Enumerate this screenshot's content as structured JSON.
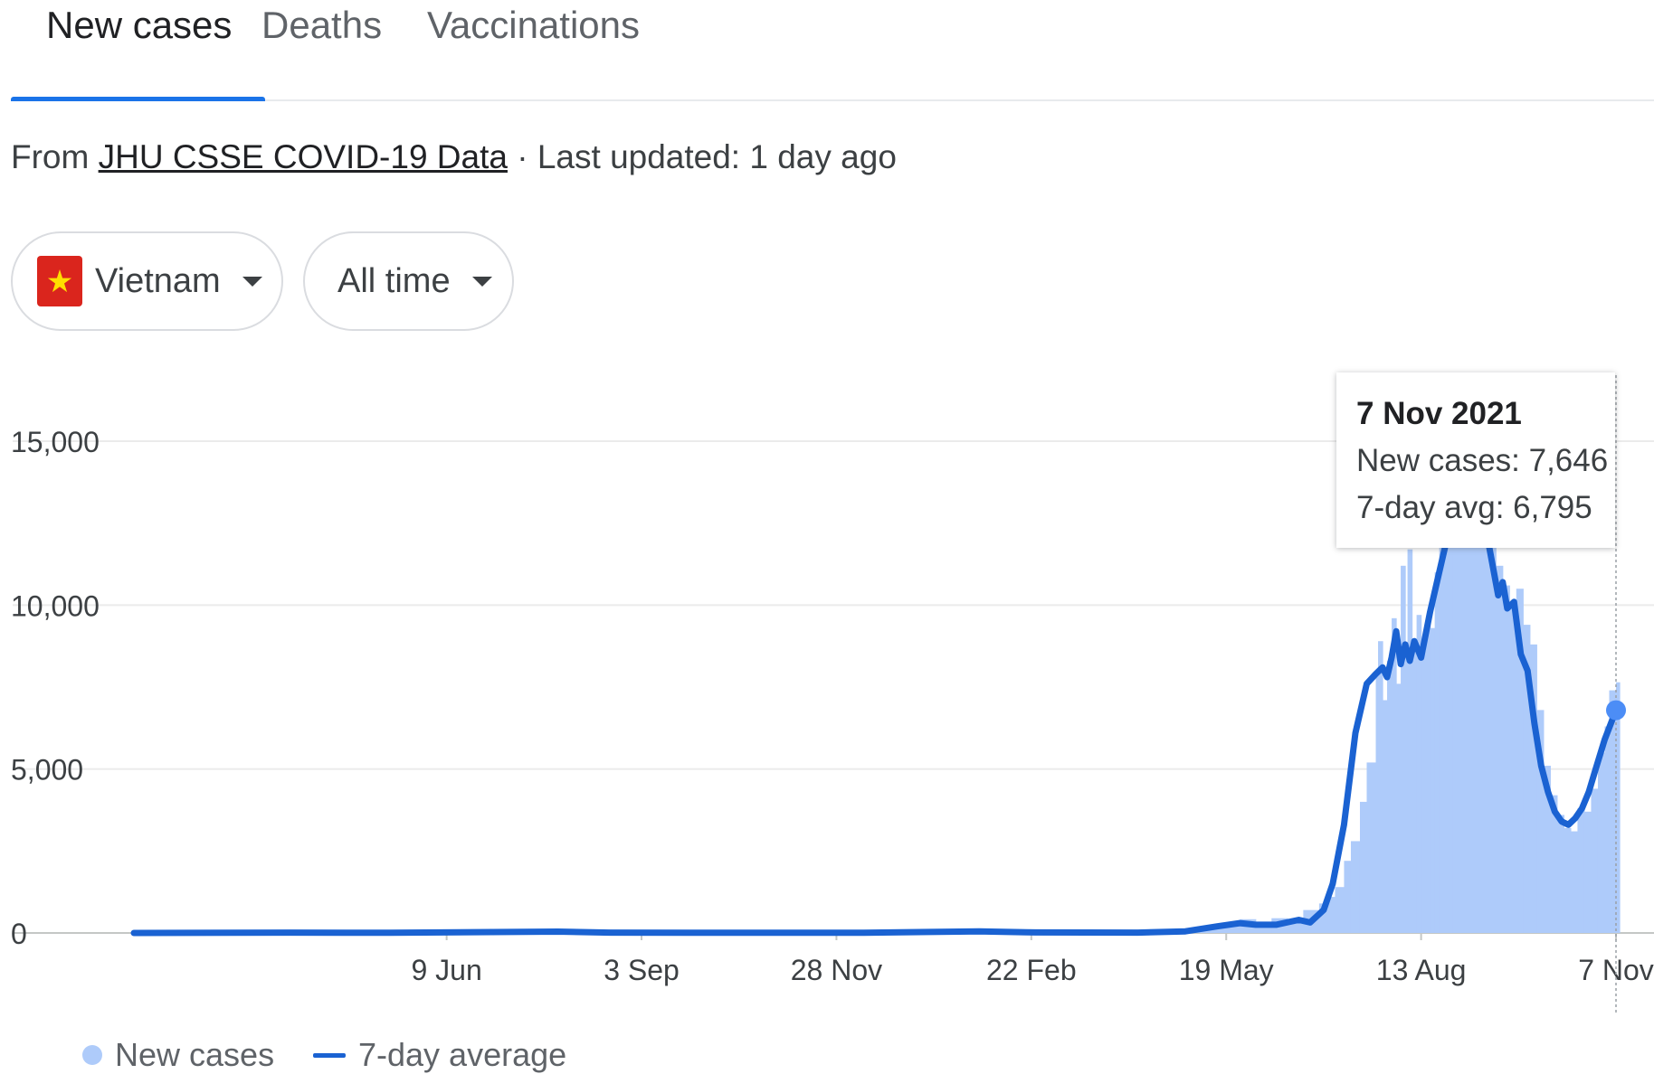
{
  "tabs": [
    {
      "label": "New cases",
      "active": true
    },
    {
      "label": "Deaths",
      "active": false
    },
    {
      "label": "Vaccinations",
      "active": false
    }
  ],
  "source": {
    "prefix": "From",
    "link_text": "JHU CSSE COVID-19 Data",
    "suffix": "· Last updated: 1 day ago"
  },
  "filters": {
    "country": "Vietnam",
    "range": "All time"
  },
  "tooltip": {
    "date": "7 Nov 2021",
    "new_cases": "New cases: 7,646",
    "avg": "7-day avg: 6,795"
  },
  "legend": {
    "bars": "New cases",
    "line": "7-day average"
  },
  "colors": {
    "bar": "#aecbfa",
    "line": "#1a62d2",
    "accent": "#1a73e8"
  },
  "icons": [
    "vietnam-flag-icon",
    "dropdown-caret-icon"
  ],
  "chart_data": {
    "type": "bar",
    "title": "",
    "xlabel": "",
    "ylabel": "",
    "ylim": [
      0,
      15000
    ],
    "y_ticks": [
      {
        "value": 15000,
        "label": "15,000"
      },
      {
        "value": 10000,
        "label": "10,000"
      },
      {
        "value": 5000,
        "label": "5,000"
      },
      {
        "value": 0,
        "label": "0"
      }
    ],
    "x_range": [
      "2020-01-23",
      "2021-11-07"
    ],
    "x_ticks": [
      {
        "date": "2020-06-09",
        "label": "9 Jun"
      },
      {
        "date": "2020-09-03",
        "label": "3 Sep"
      },
      {
        "date": "2020-11-28",
        "label": "28 Nov"
      },
      {
        "date": "2021-02-22",
        "label": "22 Feb"
      },
      {
        "date": "2021-05-19",
        "label": "19 May"
      },
      {
        "date": "2021-08-13",
        "label": "13 Aug"
      },
      {
        "date": "2021-11-07",
        "label": "7 Nov"
      }
    ],
    "grid": true,
    "legend_position": "bottom-left",
    "series": [
      {
        "name": "New cases",
        "type": "bar",
        "points": [
          [
            "2021-04-27",
            50
          ],
          [
            "2021-05-04",
            120
          ],
          [
            "2021-05-11",
            180
          ],
          [
            "2021-05-18",
            300
          ],
          [
            "2021-05-25",
            420
          ],
          [
            "2021-06-01",
            300
          ],
          [
            "2021-06-08",
            450
          ],
          [
            "2021-06-15",
            420
          ],
          [
            "2021-06-22",
            700
          ],
          [
            "2021-06-29",
            900
          ],
          [
            "2021-07-03",
            1100
          ],
          [
            "2021-07-06",
            1400
          ],
          [
            "2021-07-10",
            2200
          ],
          [
            "2021-07-13",
            2800
          ],
          [
            "2021-07-17",
            4000
          ],
          [
            "2021-07-20",
            5200
          ],
          [
            "2021-07-24",
            7900
          ],
          [
            "2021-07-25",
            8900
          ],
          [
            "2021-07-27",
            7100
          ],
          [
            "2021-07-29",
            8300
          ],
          [
            "2021-07-31",
            9600
          ],
          [
            "2021-08-02",
            7600
          ],
          [
            "2021-08-04",
            11200
          ],
          [
            "2021-08-06",
            8800
          ],
          [
            "2021-08-07",
            11700
          ],
          [
            "2021-08-09",
            8800
          ],
          [
            "2021-08-11",
            9700
          ],
          [
            "2021-08-13",
            8600
          ],
          [
            "2021-08-15",
            9400
          ],
          [
            "2021-08-17",
            9300
          ],
          [
            "2021-08-19",
            11000
          ],
          [
            "2021-08-21",
            11800
          ],
          [
            "2021-08-24",
            12500
          ],
          [
            "2021-08-27",
            13200
          ],
          [
            "2021-08-31",
            13800
          ],
          [
            "2021-09-03",
            13500
          ],
          [
            "2021-09-06",
            13200
          ],
          [
            "2021-09-09",
            12600
          ],
          [
            "2021-09-12",
            11800
          ],
          [
            "2021-09-15",
            11200
          ],
          [
            "2021-09-18",
            10600
          ],
          [
            "2021-09-21",
            9900
          ],
          [
            "2021-09-24",
            10500
          ],
          [
            "2021-09-27",
            9400
          ],
          [
            "2021-09-30",
            8800
          ],
          [
            "2021-10-03",
            6800
          ],
          [
            "2021-10-06",
            5100
          ],
          [
            "2021-10-09",
            4200
          ],
          [
            "2021-10-12",
            3600
          ],
          [
            "2021-10-15",
            3200
          ],
          [
            "2021-10-18",
            3100
          ],
          [
            "2021-10-21",
            3800
          ],
          [
            "2021-10-24",
            3700
          ],
          [
            "2021-10-27",
            4400
          ],
          [
            "2021-10-30",
            5500
          ],
          [
            "2021-11-02",
            6300
          ],
          [
            "2021-11-04",
            7400
          ],
          [
            "2021-11-07",
            7646
          ]
        ]
      },
      {
        "name": "7-day average",
        "type": "line",
        "points": [
          [
            "2020-01-23",
            0
          ],
          [
            "2020-04-01",
            10
          ],
          [
            "2020-05-15",
            5
          ],
          [
            "2020-07-28",
            40
          ],
          [
            "2020-08-20",
            10
          ],
          [
            "2020-10-15",
            5
          ],
          [
            "2020-12-10",
            5
          ],
          [
            "2021-01-30",
            50
          ],
          [
            "2021-02-20",
            20
          ],
          [
            "2021-04-10",
            10
          ],
          [
            "2021-05-01",
            50
          ],
          [
            "2021-05-15",
            200
          ],
          [
            "2021-05-25",
            300
          ],
          [
            "2021-06-01",
            250
          ],
          [
            "2021-06-10",
            250
          ],
          [
            "2021-06-20",
            400
          ],
          [
            "2021-06-25",
            320
          ],
          [
            "2021-07-01",
            700
          ],
          [
            "2021-07-05",
            1500
          ],
          [
            "2021-07-10",
            3300
          ],
          [
            "2021-07-15",
            6100
          ],
          [
            "2021-07-20",
            7600
          ],
          [
            "2021-07-24",
            7900
          ],
          [
            "2021-07-27",
            8100
          ],
          [
            "2021-07-29",
            7800
          ],
          [
            "2021-07-31",
            8400
          ],
          [
            "2021-08-02",
            9200
          ],
          [
            "2021-08-04",
            8200
          ],
          [
            "2021-08-06",
            8800
          ],
          [
            "2021-08-08",
            8300
          ],
          [
            "2021-08-10",
            8900
          ],
          [
            "2021-08-13",
            8400
          ],
          [
            "2021-08-17",
            9800
          ],
          [
            "2021-08-21",
            11000
          ],
          [
            "2021-08-25",
            12200
          ],
          [
            "2021-08-28",
            12900
          ],
          [
            "2021-09-02",
            13100
          ],
          [
            "2021-09-08",
            12900
          ],
          [
            "2021-09-12",
            11800
          ],
          [
            "2021-09-16",
            10300
          ],
          [
            "2021-09-18",
            10700
          ],
          [
            "2021-09-20",
            9900
          ],
          [
            "2021-09-23",
            10100
          ],
          [
            "2021-09-26",
            8500
          ],
          [
            "2021-09-29",
            8000
          ],
          [
            "2021-10-02",
            6400
          ],
          [
            "2021-10-05",
            5100
          ],
          [
            "2021-10-08",
            4300
          ],
          [
            "2021-10-11",
            3700
          ],
          [
            "2021-10-14",
            3400
          ],
          [
            "2021-10-17",
            3300
          ],
          [
            "2021-10-20",
            3500
          ],
          [
            "2021-10-23",
            3800
          ],
          [
            "2021-10-26",
            4300
          ],
          [
            "2021-10-29",
            5000
          ],
          [
            "2021-11-02",
            5900
          ],
          [
            "2021-11-07",
            6795
          ]
        ]
      }
    ],
    "highlight": {
      "date": "2021-11-07",
      "new_cases": 7646,
      "avg": 6795
    }
  }
}
